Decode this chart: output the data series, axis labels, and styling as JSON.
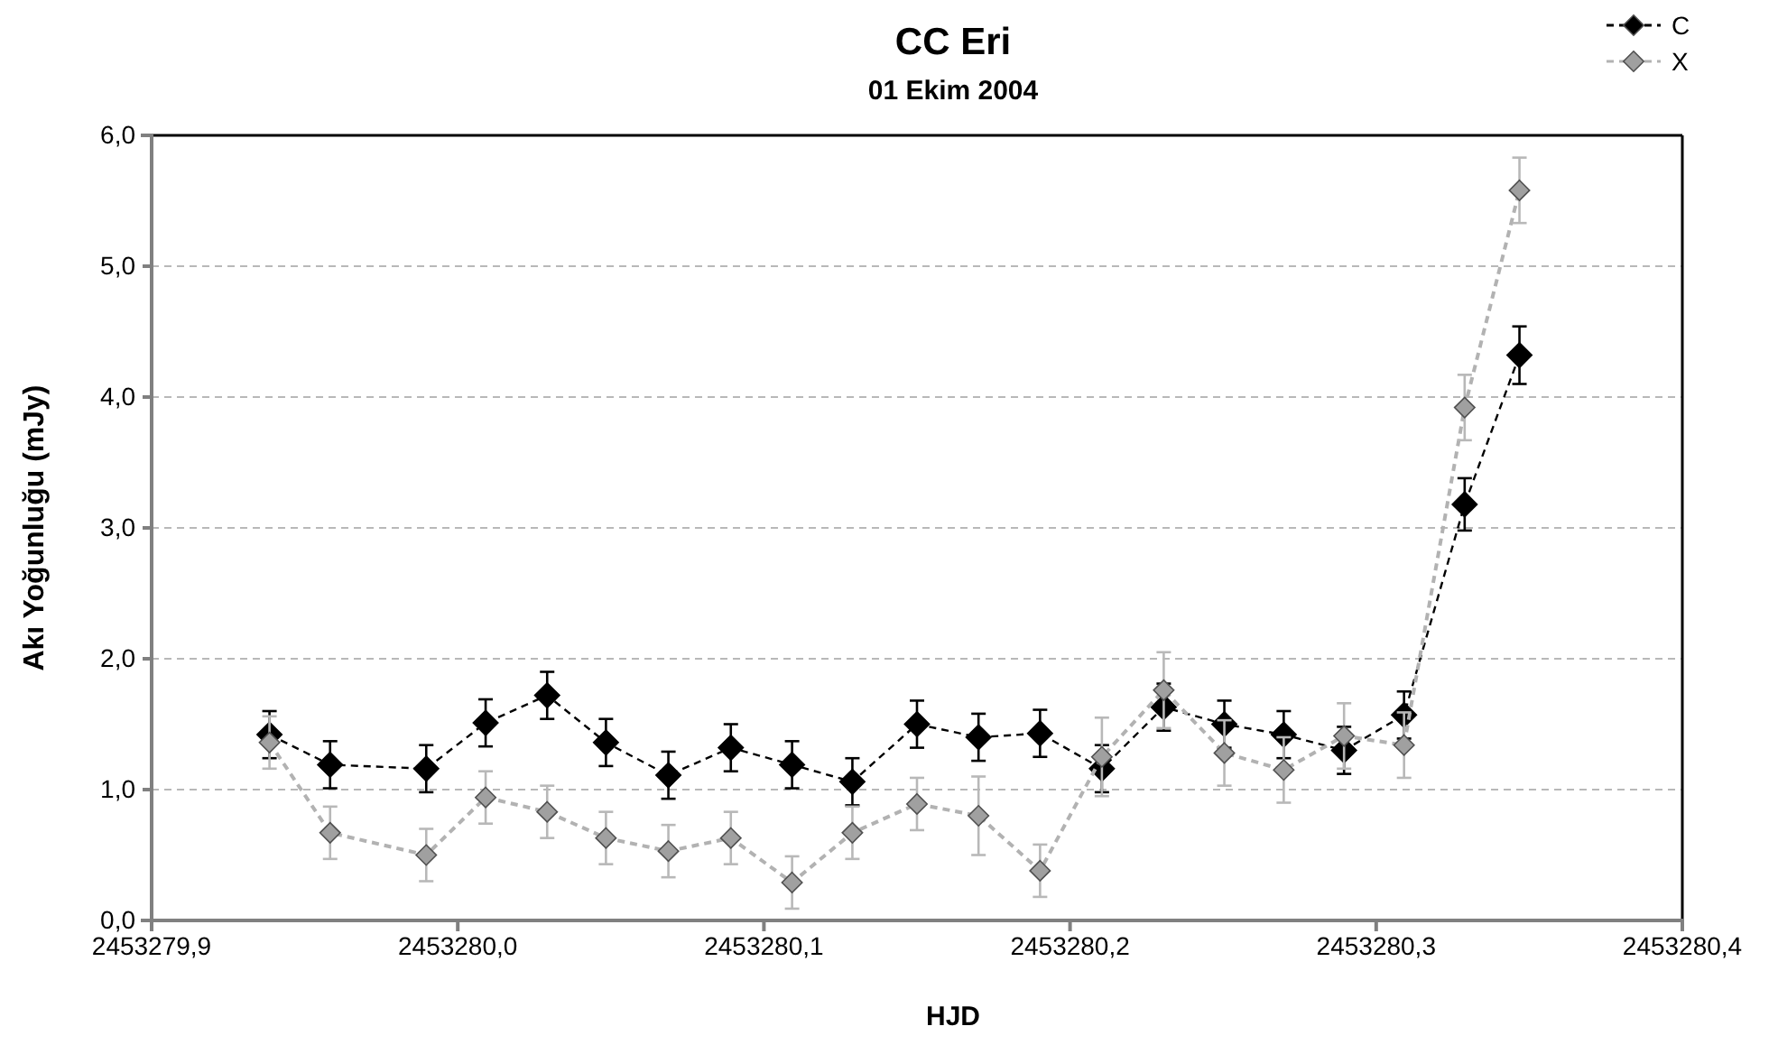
{
  "chart_data": {
    "type": "line",
    "title": "CC Eri",
    "subtitle": "01 Ekim 2004",
    "xlabel": "HJD",
    "ylabel": "Akı Yoğunluğu (mJy)",
    "x": [
      2453279.9385,
      2453279.9583,
      2453279.9897,
      2453280.0091,
      2453280.0292,
      2453280.0484,
      2453280.0688,
      2453280.0892,
      2453280.1092,
      2453280.1289,
      2453280.15,
      2453280.1701,
      2453280.1902,
      2453280.2104,
      2453280.2306,
      2453280.2504,
      2453280.2698,
      2453280.2895,
      2453280.3091,
      2453280.3289,
      2453280.3468
    ],
    "series": [
      {
        "name": "C",
        "color": "#000000",
        "values": [
          1.42,
          1.19,
          1.16,
          1.51,
          1.72,
          1.36,
          1.11,
          1.32,
          1.19,
          1.06,
          1.5,
          1.4,
          1.43,
          1.16,
          1.63,
          1.5,
          1.42,
          1.3,
          1.57,
          3.18,
          4.32
        ],
        "errors": [
          0.18,
          0.18,
          0.18,
          0.18,
          0.18,
          0.18,
          0.18,
          0.18,
          0.18,
          0.18,
          0.18,
          0.18,
          0.18,
          0.18,
          0.18,
          0.18,
          0.18,
          0.18,
          0.18,
          0.2,
          0.22
        ]
      },
      {
        "name": "X",
        "color": "#a0a0a0",
        "values": [
          1.36,
          0.67,
          0.5,
          0.94,
          0.83,
          0.63,
          0.53,
          0.63,
          0.29,
          0.67,
          0.89,
          0.8,
          0.38,
          1.25,
          1.76,
          1.28,
          1.15,
          1.41,
          1.34,
          3.92,
          5.58
        ],
        "errors": [
          0.2,
          0.2,
          0.2,
          0.2,
          0.2,
          0.2,
          0.2,
          0.2,
          0.2,
          0.2,
          0.2,
          0.3,
          0.2,
          0.3,
          0.29,
          0.25,
          0.25,
          0.25,
          0.25,
          0.25,
          0.25
        ]
      }
    ],
    "xlim": [
      2453279.9,
      2453280.4
    ],
    "xticks": [
      {
        "value": 2453279.9,
        "label": "2453279,9"
      },
      {
        "value": 2453280.0,
        "label": "2453280,0"
      },
      {
        "value": 2453280.1,
        "label": "2453280,1"
      },
      {
        "value": 2453280.2,
        "label": "2453280,2"
      },
      {
        "value": 2453280.3,
        "label": "2453280,3"
      },
      {
        "value": 2453280.4,
        "label": "2453280,4"
      }
    ],
    "ylim": [
      0,
      6
    ],
    "yticks": [
      {
        "value": 0,
        "label": "0,0"
      },
      {
        "value": 1,
        "label": "1,0"
      },
      {
        "value": 2,
        "label": "2,0"
      },
      {
        "value": 3,
        "label": "3,0"
      },
      {
        "value": 4,
        "label": "4,0"
      },
      {
        "value": 5,
        "label": "5,0"
      },
      {
        "value": 6,
        "label": "6,0"
      }
    ],
    "grid": "y",
    "legend": "top right",
    "marker": "diamond",
    "line_style": "dashed"
  }
}
